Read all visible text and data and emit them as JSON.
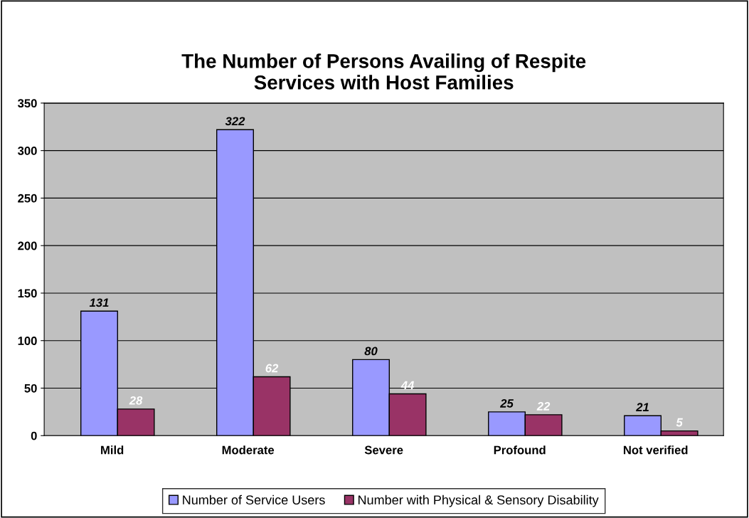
{
  "chart_data": {
    "type": "bar",
    "title": "The Number of Persons Availing of Respite\nServices with Host Families",
    "categories": [
      "Mild",
      "Moderate",
      "Severe",
      "Profound",
      "Not verified"
    ],
    "series": [
      {
        "name": "Number of Service Users",
        "color": "#9999ff",
        "values": [
          131,
          322,
          80,
          25,
          21
        ]
      },
      {
        "name": "Number with Physical & Sensory Disability",
        "color": "#993366",
        "values": [
          28,
          62,
          44,
          22,
          5
        ]
      }
    ],
    "ylim": [
      0,
      350
    ],
    "yticks": [
      0,
      50,
      100,
      150,
      200,
      250,
      300,
      350
    ],
    "grid": "y",
    "legend": "bottom",
    "data_labels": true
  }
}
